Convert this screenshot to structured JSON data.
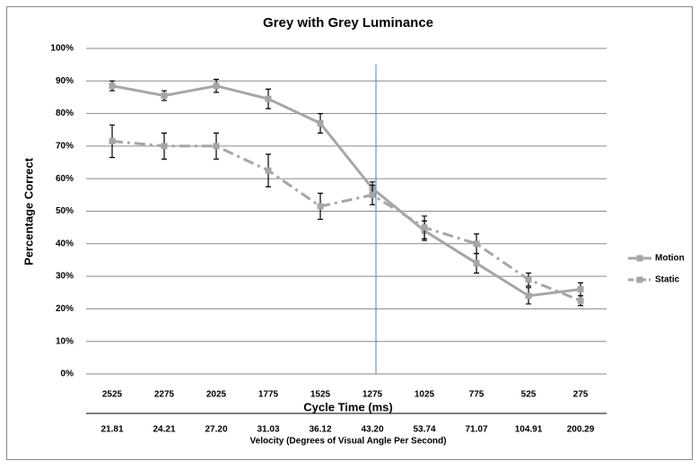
{
  "chart_data": {
    "type": "line",
    "title": "Grey with Grey Luminance",
    "x_label": "Cycle Time (ms)",
    "x2_label": "Velocity (Degrees of Visual Angle Per Second)",
    "y_label": "Percentage Correct",
    "categories": [
      "2525",
      "2275",
      "2025",
      "1775",
      "1525",
      "1275",
      "1025",
      "775",
      "525",
      "275"
    ],
    "x2_categories": [
      "21.81",
      "24.21",
      "27.20",
      "31.03",
      "36.12",
      "43.20",
      "53.74",
      "71.07",
      "104.91",
      "200.29"
    ],
    "series": [
      {
        "name": "Motion",
        "color": "#a6a6a6",
        "line_style": "solid",
        "values": [
          88.5,
          85.5,
          88.5,
          84.5,
          77,
          57,
          44,
          34,
          24,
          26
        ],
        "errors": [
          1.5,
          1.5,
          2,
          3,
          3,
          2,
          3,
          3,
          2.5,
          2
        ]
      },
      {
        "name": "Static",
        "color": "#a6a6a6",
        "line_style": "dashdot",
        "values": [
          71.5,
          70,
          70,
          62.5,
          51.5,
          55,
          45,
          40,
          29,
          22.5
        ],
        "errors": [
          5,
          4,
          4,
          5,
          4,
          3,
          3.5,
          3,
          2,
          1.5
        ]
      }
    ],
    "ylim": [
      0,
      100
    ],
    "yticks": [
      {
        "value": 0,
        "label": "0%"
      },
      {
        "value": 10,
        "label": "10%"
      },
      {
        "value": 20,
        "label": "20%"
      },
      {
        "value": 30,
        "label": "30%"
      },
      {
        "value": 40,
        "label": "40%"
      },
      {
        "value": 50,
        "label": "50%"
      },
      {
        "value": 60,
        "label": "60%"
      },
      {
        "value": 70,
        "label": "70%"
      },
      {
        "value": 80,
        "label": "80%"
      },
      {
        "value": 90,
        "label": "90%"
      },
      {
        "value": 100,
        "label": "100%"
      }
    ],
    "grid": true,
    "legend": "right"
  }
}
